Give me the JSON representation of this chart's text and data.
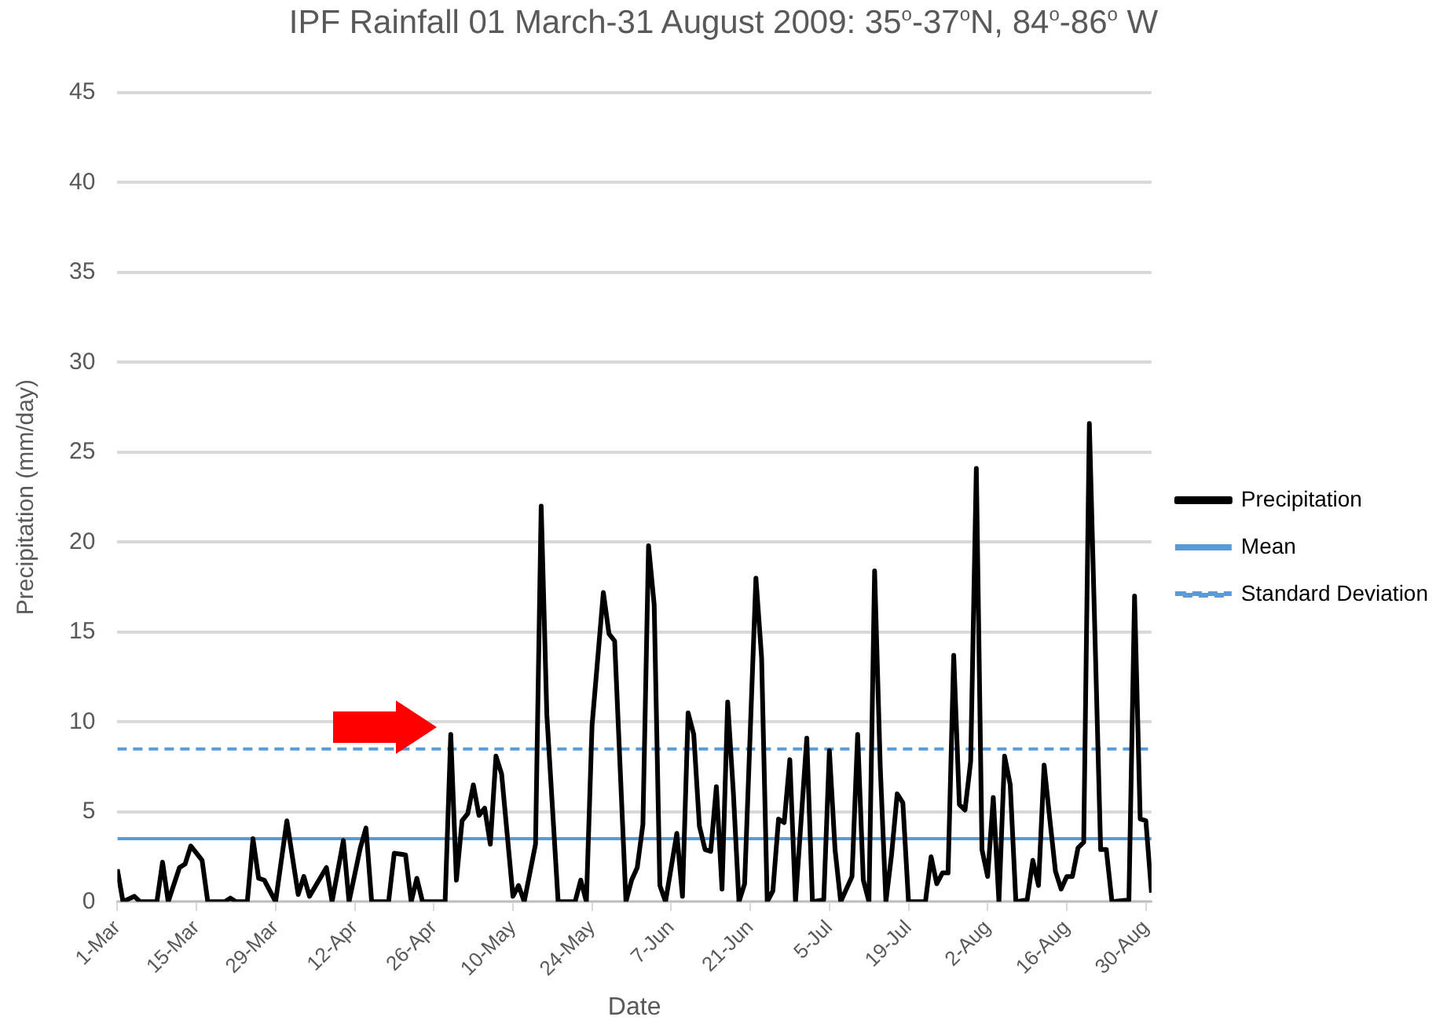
{
  "chart_data": {
    "type": "line",
    "title": "IPF Rainfall 01 March-31 August 2009: 35$^{o}$-37$^{o}$N, 84$^{o}$-86$^{o}$ W",
    "xlabel": "Date",
    "ylabel": "Precipitation (mm/day)",
    "x": [
      "--03-01",
      "--03-02",
      "--03-04",
      "--03-05",
      "--03-08",
      "--03-09",
      "--03-10",
      "--03-12",
      "--03-13",
      "--03-14",
      "--03-16",
      "--03-17",
      "--03-20",
      "--03-21",
      "--03-22",
      "--03-24",
      "--03-25",
      "--03-26",
      "--03-27",
      "--03-29",
      "--03-31",
      "--04-02",
      "--04-03",
      "--04-04",
      "--04-07",
      "--04-08",
      "--04-10",
      "--04-11",
      "--04-13",
      "--04-14",
      "--04-15",
      "--04-18",
      "--04-19",
      "--04-21",
      "--04-22",
      "--04-23",
      "--04-24",
      "--04-28",
      "--04-29",
      "--04-30",
      "--05-01",
      "--05-02",
      "--05-03",
      "--05-04",
      "--05-05",
      "--05-06",
      "--05-07",
      "--05-08",
      "--05-10",
      "--05-11",
      "--05-12",
      "--05-14",
      "--05-15",
      "--05-16",
      "--05-18",
      "--05-21",
      "--05-22",
      "--05-23",
      "--05-24",
      "--05-26",
      "--05-27",
      "--05-28",
      "--05-30",
      "--05-31",
      "--06-01",
      "--06-02",
      "--06-03",
      "--06-04",
      "--06-05",
      "--06-06",
      "--06-08",
      "--06-09",
      "--06-10",
      "--06-11",
      "--06-12",
      "--06-13",
      "--06-14",
      "--06-15",
      "--06-16",
      "--06-17",
      "--06-18",
      "--06-19",
      "--06-20",
      "--06-22",
      "--06-23",
      "--06-24",
      "--06-25",
      "--06-26",
      "--06-27",
      "--06-28",
      "--06-29",
      "--07-01",
      "--07-02",
      "--07-04",
      "--07-05",
      "--07-06",
      "--07-07",
      "--07-09",
      "--07-10",
      "--07-11",
      "--07-12",
      "--07-13",
      "--07-14",
      "--07-15",
      "--07-16",
      "--07-17",
      "--07-18",
      "--07-19",
      "--07-22",
      "--07-23",
      "--07-24",
      "--07-25",
      "--07-26",
      "--07-27",
      "--07-28",
      "--07-29",
      "--07-30",
      "--07-31",
      "--08-01",
      "--08-02",
      "--08-03",
      "--08-04",
      "--08-05",
      "--08-06",
      "--08-07",
      "--08-09",
      "--08-10",
      "--08-11",
      "--08-12",
      "--08-13",
      "--08-14",
      "--08-15",
      "--08-16",
      "--08-17",
      "--08-18",
      "--08-19",
      "--08-20",
      "--08-22",
      "--08-23",
      "--08-24",
      "--08-27",
      "--08-28",
      "--08-29",
      "--08-30",
      "--08-31"
    ],
    "series": [
      {
        "name": "Precipitation",
        "color": "#000000",
        "values": [
          1.8,
          0,
          0.3,
          0,
          0,
          2.2,
          0,
          1.9,
          2.1,
          3.1,
          2.3,
          0,
          0,
          0.2,
          0,
          0,
          3.5,
          1.3,
          1.2,
          0,
          4.5,
          0.4,
          1.4,
          0.3,
          1.9,
          0,
          3.4,
          0,
          3.0,
          4.1,
          0,
          0,
          2.7,
          2.6,
          0,
          1.3,
          0,
          0,
          9.3,
          1.2,
          4.5,
          4.9,
          6.5,
          4.8,
          5.2,
          3.2,
          8.1,
          7.1,
          0.3,
          0.9,
          0,
          3.2,
          22.0,
          10.4,
          0,
          0,
          1.2,
          0,
          9.8,
          17.2,
          14.9,
          14.5,
          0,
          1.2,
          1.9,
          4.3,
          19.8,
          16.5,
          0.9,
          0,
          3.8,
          0.3,
          10.5,
          9.3,
          4.2,
          2.9,
          2.8,
          6.4,
          0.7,
          11.1,
          6.1,
          0,
          1.0,
          18.0,
          13.6,
          0,
          0.6,
          4.6,
          4.4,
          7.9,
          0,
          9.1,
          0,
          0.1,
          8.4,
          2.9,
          0,
          1.4,
          9.3,
          1.2,
          0,
          18.4,
          7.5,
          0,
          2.6,
          6.0,
          5.5,
          0,
          0,
          2.5,
          1.0,
          1.6,
          1.6,
          13.7,
          5.4,
          5.1,
          7.8,
          24.1,
          2.9,
          1.4,
          5.8,
          0,
          8.1,
          6.5,
          0,
          0.1,
          2.3,
          0.9,
          7.6,
          4.6,
          1.7,
          0.7,
          1.4,
          1.4,
          3.0,
          3.3,
          26.6,
          2.9,
          2.9,
          0,
          0.1,
          17.0,
          4.6,
          4.5,
          0.5
        ]
      }
    ],
    "ref_lines": [
      {
        "axis": "y",
        "value": 3.5,
        "label": "Mean",
        "color": "#5b9bd5",
        "line_style": "solid"
      },
      {
        "axis": "y",
        "value": 8.5,
        "label": "Standard Deviation",
        "color": "#5b9bd5",
        "line_style": "dashed"
      }
    ],
    "xlim": [
      "--03-01",
      "--08-31"
    ],
    "xticks": [
      {
        "value": "--03-01",
        "label": "1-Mar"
      },
      {
        "value": "--03-15",
        "label": "15-Mar"
      },
      {
        "value": "--03-29",
        "label": "29-Mar"
      },
      {
        "value": "--04-12",
        "label": "12-Apr"
      },
      {
        "value": "--04-26",
        "label": "26-Apr"
      },
      {
        "value": "--05-10",
        "label": "10-May"
      },
      {
        "value": "--05-24",
        "label": "24-May"
      },
      {
        "value": "--06-07",
        "label": "7-Jun"
      },
      {
        "value": "--06-21",
        "label": "21-Jun"
      },
      {
        "value": "--07-05",
        "label": "5-Jul"
      },
      {
        "value": "--07-19",
        "label": "19-Jul"
      },
      {
        "value": "--08-02",
        "label": "2-Aug"
      },
      {
        "value": "--08-16",
        "label": "16-Aug"
      },
      {
        "value": "--08-30",
        "label": "30-Aug"
      }
    ],
    "ylim": [
      0,
      45
    ],
    "yticks": [
      0,
      5,
      10,
      15,
      20,
      25,
      30,
      35,
      40,
      45
    ],
    "grid": "y",
    "legend": "right",
    "marker": "none",
    "line_style": "solid"
  }
}
